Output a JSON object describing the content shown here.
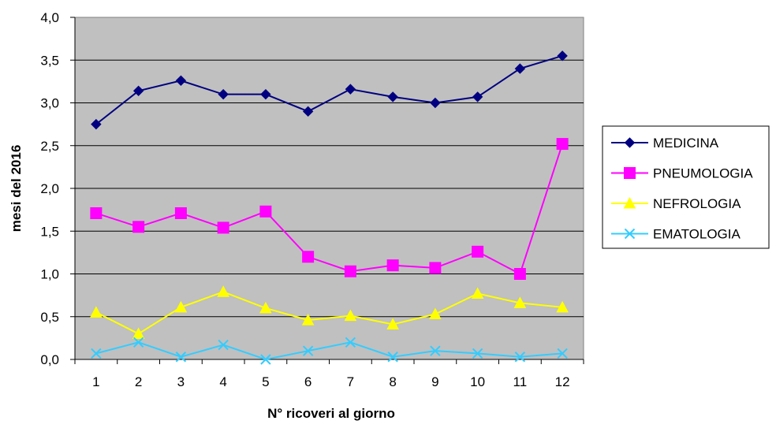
{
  "chart_data": {
    "type": "line",
    "xlabel": "N° ricoveri al giorno",
    "ylabel": "mesi del 2016",
    "categories": [
      "1",
      "2",
      "3",
      "4",
      "5",
      "6",
      "7",
      "8",
      "9",
      "10",
      "11",
      "12"
    ],
    "y_ticks": [
      "0,0",
      "0,5",
      "1,0",
      "1,5",
      "2,0",
      "2,5",
      "3,0",
      "3,5",
      "4,0"
    ],
    "ylim": [
      0,
      4
    ],
    "grid": true,
    "legend_position": "right",
    "plot_background": "#c0c0c0",
    "series": [
      {
        "name": "MEDICINA",
        "color": "#000080",
        "marker": "diamond",
        "values": [
          2.75,
          3.14,
          3.26,
          3.1,
          3.1,
          2.9,
          3.16,
          3.07,
          3.0,
          3.07,
          3.4,
          3.55
        ]
      },
      {
        "name": "PNEUMOLOGIA",
        "color": "#ff00ff",
        "marker": "square",
        "values": [
          1.71,
          1.55,
          1.71,
          1.54,
          1.73,
          1.2,
          1.03,
          1.1,
          1.07,
          1.26,
          1.0,
          2.52
        ]
      },
      {
        "name": "NEFROLOGIA",
        "color": "#ffff00",
        "marker": "triangle",
        "values": [
          0.55,
          0.3,
          0.61,
          0.79,
          0.6,
          0.46,
          0.51,
          0.41,
          0.53,
          0.77,
          0.66,
          0.61
        ]
      },
      {
        "name": "EMATOLOGIA",
        "color": "#33ccff",
        "marker": "x",
        "values": [
          0.07,
          0.2,
          0.03,
          0.17,
          0.0,
          0.1,
          0.2,
          0.03,
          0.1,
          0.07,
          0.03,
          0.07
        ]
      }
    ]
  }
}
